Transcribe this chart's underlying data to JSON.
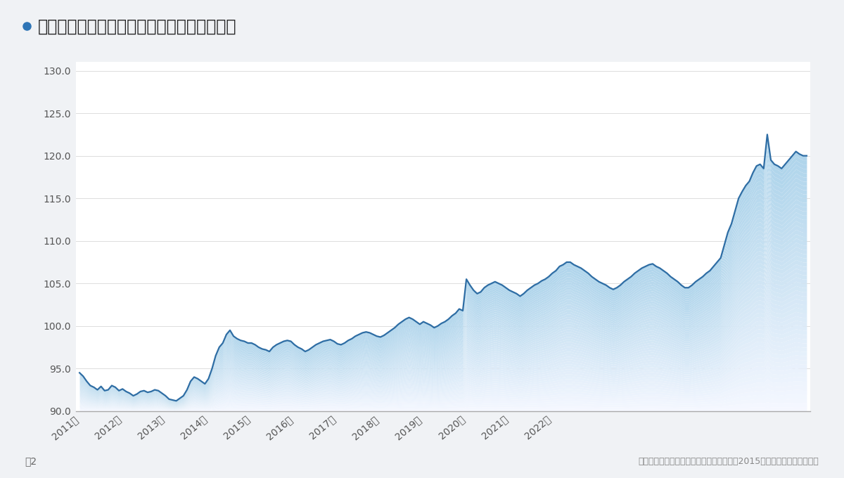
{
  "title": "建設工事費デフレーター（住宅総合）の推移",
  "title_bullet_color": "#2e75b6",
  "subtitle_source": "（国土交通省「建設工事費デフレーター（2015年度基準）」より作成）",
  "figure2_label": "図2",
  "background_color": "#f0f2f5",
  "chart_background": "#ffffff",
  "line_color": "#2e6da4",
  "fill_color": "#b8d4e8",
  "ylim_min": 90.0,
  "ylim_max": 131.0,
  "yticks": [
    90.0,
    95.0,
    100.0,
    105.0,
    110.0,
    115.0,
    120.0,
    125.0,
    130.0
  ],
  "xlabel_years": [
    "2011年",
    "2012年",
    "2013年",
    "2014年",
    "2015年",
    "2016年",
    "2017年",
    "2018年",
    "2019年",
    "2020年",
    "2021年",
    "2022年"
  ],
  "data": [
    94.5,
    94.1,
    93.5,
    93.0,
    92.8,
    92.5,
    92.9,
    92.4,
    92.5,
    93.0,
    92.8,
    92.4,
    92.6,
    92.3,
    92.1,
    91.8,
    92.0,
    92.3,
    92.4,
    92.2,
    92.3,
    92.5,
    92.4,
    92.1,
    91.8,
    91.4,
    91.3,
    91.2,
    91.5,
    91.8,
    92.5,
    93.5,
    94.0,
    93.8,
    93.5,
    93.2,
    93.8,
    95.0,
    96.5,
    97.5,
    98.0,
    99.0,
    99.5,
    98.8,
    98.5,
    98.3,
    98.2,
    98.0,
    98.0,
    97.8,
    97.5,
    97.3,
    97.2,
    97.0,
    97.5,
    97.8,
    98.0,
    98.2,
    98.3,
    98.2,
    97.8,
    97.5,
    97.3,
    97.0,
    97.2,
    97.5,
    97.8,
    98.0,
    98.2,
    98.3,
    98.4,
    98.2,
    97.9,
    97.8,
    98.0,
    98.3,
    98.5,
    98.8,
    99.0,
    99.2,
    99.3,
    99.2,
    99.0,
    98.8,
    98.7,
    98.9,
    99.2,
    99.5,
    99.8,
    100.2,
    100.5,
    100.8,
    101.0,
    100.8,
    100.5,
    100.2,
    100.5,
    100.3,
    100.1,
    99.8,
    100.0,
    100.3,
    100.5,
    100.8,
    101.2,
    101.5,
    102.0,
    101.8,
    105.5,
    104.8,
    104.2,
    103.8,
    104.0,
    104.5,
    104.8,
    105.0,
    105.2,
    105.0,
    104.8,
    104.5,
    104.2,
    104.0,
    103.8,
    103.5,
    103.8,
    104.2,
    104.5,
    104.8,
    105.0,
    105.3,
    105.5,
    105.8,
    106.2,
    106.5,
    107.0,
    107.2,
    107.5,
    107.5,
    107.2,
    107.0,
    106.8,
    106.5,
    106.2,
    105.8,
    105.5,
    105.2,
    105.0,
    104.8,
    104.5,
    104.3,
    104.5,
    104.8,
    105.2,
    105.5,
    105.8,
    106.2,
    106.5,
    106.8,
    107.0,
    107.2,
    107.3,
    107.0,
    106.8,
    106.5,
    106.2,
    105.8,
    105.5,
    105.2,
    104.8,
    104.5,
    104.5,
    104.8,
    105.2,
    105.5,
    105.8,
    106.2,
    106.5,
    107.0,
    107.5,
    108.0,
    109.5,
    111.0,
    112.0,
    113.5,
    115.0,
    115.8,
    116.5,
    117.0,
    118.0,
    118.8,
    119.0,
    118.5,
    122.5,
    119.5,
    119.0,
    118.8,
    118.5,
    119.0,
    119.5,
    120.0,
    120.5,
    120.2,
    120.0,
    120.0
  ],
  "line_width": 1.6,
  "grid_color": "#dddddd",
  "tick_color": "#555555",
  "axis_line_color": "#aaaaaa"
}
